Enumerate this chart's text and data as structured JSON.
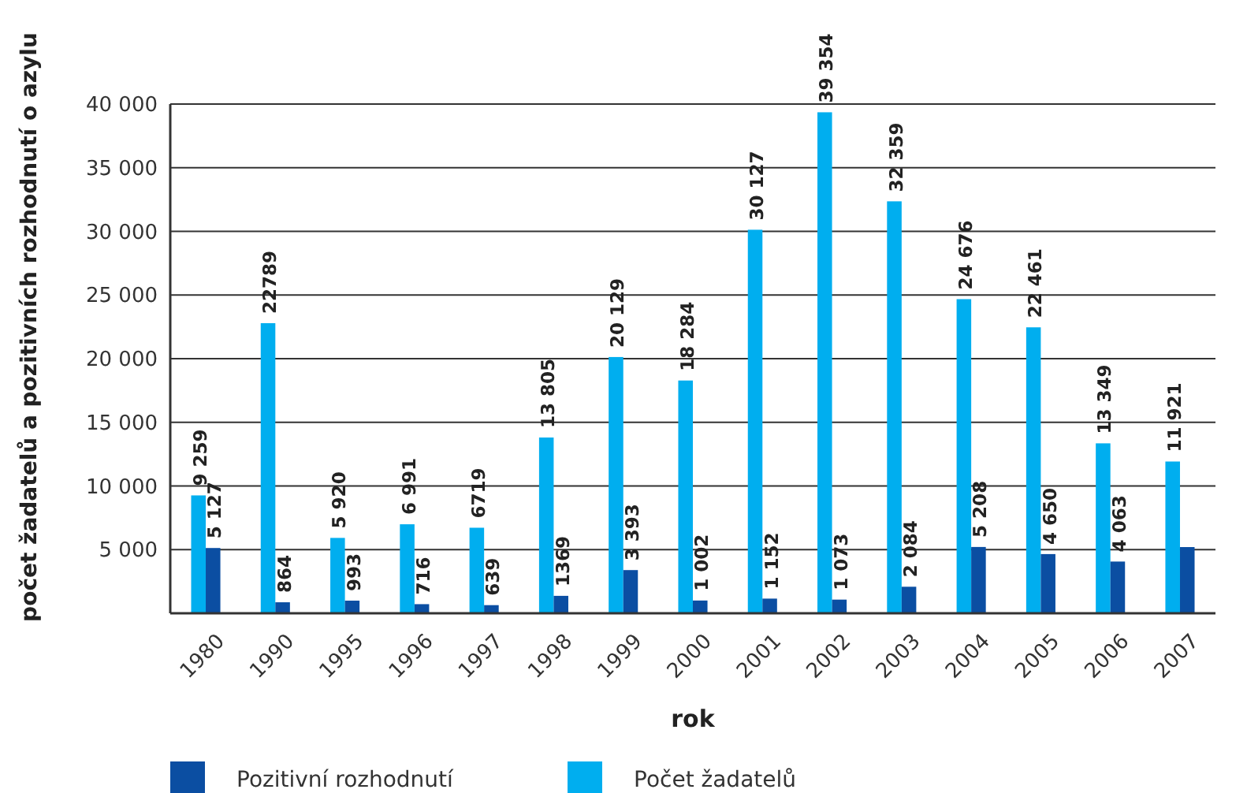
{
  "chart_data": {
    "type": "bar",
    "xlabel": "rok",
    "ylabel": "počet žadatelů a pozitivních rozhodnutí o azylu",
    "categories": [
      "1980",
      "1990",
      "1995",
      "1996",
      "1997",
      "1998",
      "1999",
      "2000",
      "2001",
      "2002",
      "2003",
      "2004",
      "2005",
      "2006",
      "2007"
    ],
    "series": [
      {
        "name": "Počet žadatelů",
        "color": "#00aeef",
        "values": [
          9259,
          22789,
          5920,
          6991,
          6719,
          13805,
          20129,
          18284,
          30127,
          39354,
          32359,
          24676,
          22461,
          13349,
          11921
        ],
        "value_labels": [
          "9 259",
          "22789",
          "5 920",
          "6 991",
          "6719",
          "13 805",
          "20 129",
          "18 284",
          "30 127",
          "39 354",
          "32 359",
          "24 676",
          "22 461",
          "13 349",
          "11 921"
        ]
      },
      {
        "name": "Pozitivní rozhodnutí",
        "color": "#0b4ea2",
        "values": [
          5127,
          864,
          993,
          716,
          639,
          1369,
          3393,
          1002,
          1152,
          1073,
          2084,
          5208,
          4650,
          4063,
          5200
        ],
        "value_labels": [
          "5 127",
          "864",
          "993",
          "716",
          "639",
          "1369",
          "3 393",
          "1 002",
          "1 152",
          "1 073",
          "2 084",
          "5 208",
          "4 650",
          "4 063",
          null
        ]
      }
    ],
    "ylim": [
      0,
      40000
    ],
    "yticks": [
      {
        "value": 5000,
        "label": "5 000"
      },
      {
        "value": 10000,
        "label": "10 000"
      },
      {
        "value": 15000,
        "label": "15 000"
      },
      {
        "value": 20000,
        "label": "20 000"
      },
      {
        "value": 25000,
        "label": "25 000"
      },
      {
        "value": 30000,
        "label": "30 000"
      },
      {
        "value": 35000,
        "label": "35 000"
      },
      {
        "value": 40000,
        "label": "40 000"
      }
    ],
    "grid": "y",
    "legend": "bottom"
  }
}
